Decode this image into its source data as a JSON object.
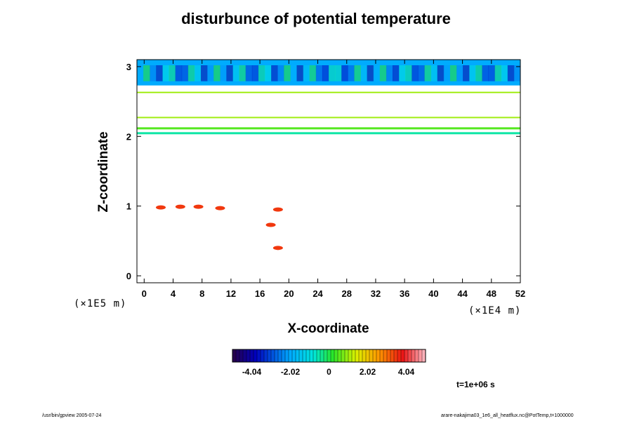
{
  "chart_data": {
    "type": "heatmap",
    "title": "disturbunce of potential temperature",
    "xlabel": "X-coordinate",
    "ylabel": "Z-coordinate",
    "x_unit": "(×1E4 m)",
    "y_unit": "(×1E5 m)",
    "xlim": [
      -1,
      52
    ],
    "ylim": [
      -0.1,
      3.1
    ],
    "x_ticks": [
      0,
      4,
      8,
      12,
      16,
      20,
      24,
      28,
      32,
      36,
      40,
      44,
      48,
      52
    ],
    "x_tick_labels": [
      "0",
      "4",
      "8",
      "12",
      "16",
      "20",
      "24",
      "28",
      "32",
      "36",
      "40",
      "44",
      "48",
      "52"
    ],
    "y_ticks": [
      0,
      1,
      2,
      3
    ],
    "y_tick_labels": [
      "0",
      "1",
      "2",
      "3"
    ],
    "colorbar": {
      "min": -5.05,
      "max": 5.05,
      "ticks": [
        -4.04,
        -2.02,
        0,
        2.02,
        4.04
      ],
      "tick_labels": [
        "-4.04",
        "-2.02",
        "0",
        "2.02",
        "4.04"
      ]
    },
    "regions": [
      {
        "name": "upper layer",
        "z_range": [
          2.73,
          3.1
        ],
        "dominant_value": -2.0
      },
      {
        "name": "thin layer",
        "z_range": [
          2.62,
          2.64
        ],
        "dominant_value": 1.0
      },
      {
        "name": "thin layer",
        "z_range": [
          2.26,
          2.28
        ],
        "dominant_value": 1.0
      },
      {
        "name": "thin layer",
        "z_range": [
          2.1,
          2.13
        ],
        "dominant_value": 0.5
      },
      {
        "name": "thin layer",
        "z_range": [
          2.03,
          2.06
        ],
        "dominant_value": -0.5
      }
    ],
    "patches": [
      {
        "x": 2.3,
        "z": 0.98,
        "value": 3.5
      },
      {
        "x": 5.0,
        "z": 0.99,
        "value": 3.5
      },
      {
        "x": 7.5,
        "z": 0.99,
        "value": 3.5
      },
      {
        "x": 10.5,
        "z": 0.97,
        "value": 3.5
      },
      {
        "x": 18.5,
        "z": 0.95,
        "value": 3.5
      },
      {
        "x": 17.5,
        "z": 0.73,
        "value": 3.5
      },
      {
        "x": 18.5,
        "z": 0.4,
        "value": 3.5
      }
    ]
  },
  "timestamp": "t=1e+06 s",
  "footer_left": "/usr/bin/gpview 2005-07-24",
  "footer_right": "arare-nakajima03_1e6_all_heatflux.nc@PotTemp,t=1000000"
}
